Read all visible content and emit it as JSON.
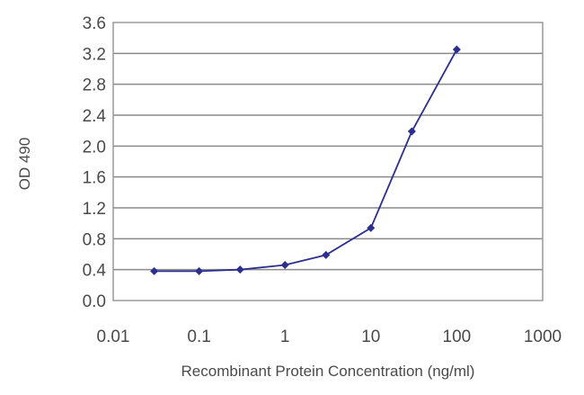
{
  "chart_data": {
    "type": "line",
    "title": "",
    "xlabel": "Recombinant Protein Concentration (ng/ml)",
    "ylabel": "OD 490",
    "x_scale": "log",
    "xlim": [
      0.01,
      1000
    ],
    "ylim": [
      0.0,
      3.6
    ],
    "x_ticks": [
      "0.01",
      "0.1",
      "1",
      "10",
      "100",
      "1000"
    ],
    "x_tick_values": [
      0.01,
      0.1,
      1,
      10,
      100,
      1000
    ],
    "y_ticks": [
      "0.0",
      "0.4",
      "0.8",
      "1.2",
      "1.6",
      "2.0",
      "2.4",
      "2.8",
      "3.2",
      "3.6"
    ],
    "y_tick_values": [
      0.0,
      0.4,
      0.8,
      1.2,
      1.6,
      2.0,
      2.4,
      2.8,
      3.2,
      3.6
    ],
    "grid": "horizontal",
    "legend": "none",
    "series": [
      {
        "x": [
          0.03,
          0.1,
          0.3,
          1,
          3,
          10,
          30,
          100
        ],
        "y": [
          0.38,
          0.38,
          0.4,
          0.46,
          0.59,
          0.94,
          2.19,
          3.25
        ],
        "color": "#2b2f8f",
        "marker": "diamond"
      }
    ],
    "plot_border_color": "#9a9a9a",
    "grid_color": "#8a8a8a",
    "background": "#ffffff"
  }
}
